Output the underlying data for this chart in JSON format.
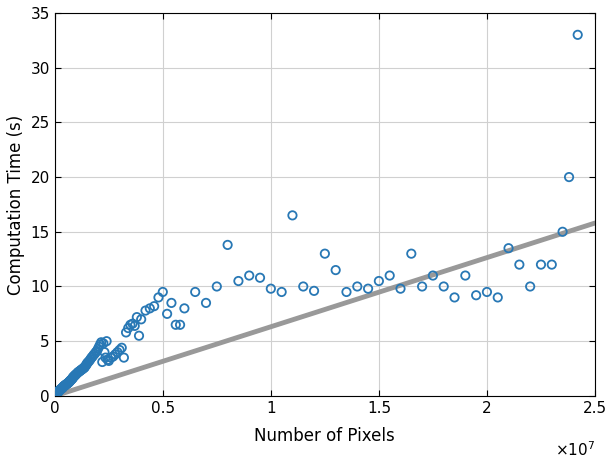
{
  "scatter_x": [
    0.001,
    0.002,
    0.003,
    0.004,
    0.005,
    0.006,
    0.007,
    0.008,
    0.009,
    0.01,
    0.012,
    0.013,
    0.015,
    0.016,
    0.018,
    0.019,
    0.02,
    0.022,
    0.023,
    0.025,
    0.027,
    0.028,
    0.03,
    0.032,
    0.033,
    0.035,
    0.037,
    0.038,
    0.04,
    0.042,
    0.043,
    0.045,
    0.047,
    0.048,
    0.05,
    0.052,
    0.055,
    0.057,
    0.058,
    0.06,
    0.062,
    0.063,
    0.065,
    0.067,
    0.068,
    0.07,
    0.072,
    0.075,
    0.077,
    0.08,
    0.082,
    0.083,
    0.085,
    0.087,
    0.09,
    0.092,
    0.095,
    0.097,
    0.1,
    0.105,
    0.108,
    0.11,
    0.115,
    0.118,
    0.12,
    0.125,
    0.128,
    0.13,
    0.135,
    0.138,
    0.14,
    0.145,
    0.148,
    0.15,
    0.155,
    0.16,
    0.165,
    0.17,
    0.175,
    0.18,
    0.185,
    0.19,
    0.195,
    0.2,
    0.205,
    0.21,
    0.215,
    0.22,
    0.225,
    0.23,
    0.235,
    0.24,
    0.245,
    0.25,
    0.26,
    0.27,
    0.28,
    0.29,
    0.3,
    0.31,
    0.32,
    0.33,
    0.34,
    0.35,
    0.36,
    0.37,
    0.38,
    0.39,
    0.4,
    0.42,
    0.44,
    0.46,
    0.48,
    0.5,
    0.52,
    0.54,
    0.56,
    0.58,
    0.6,
    0.65,
    0.7,
    0.75,
    0.8,
    0.85,
    0.9,
    0.95,
    1.0,
    1.05,
    1.1,
    1.15,
    1.2,
    1.25,
    1.3,
    1.35,
    1.4,
    1.45,
    1.5,
    1.55,
    1.6,
    1.65,
    1.7,
    1.75,
    1.8,
    1.85,
    1.9,
    1.95,
    2.0,
    2.05,
    2.1,
    2.15,
    2.2,
    2.25,
    2.3,
    2.35,
    2.38,
    2.42
  ],
  "scatter_y": [
    0.05,
    0.08,
    0.1,
    0.12,
    0.15,
    0.18,
    0.2,
    0.22,
    0.25,
    0.28,
    0.3,
    0.35,
    0.38,
    0.4,
    0.42,
    0.45,
    0.48,
    0.5,
    0.52,
    0.55,
    0.6,
    0.62,
    0.65,
    0.68,
    0.7,
    0.72,
    0.75,
    0.8,
    0.85,
    0.88,
    0.9,
    0.92,
    0.95,
    0.98,
    1.0,
    1.05,
    1.08,
    1.1,
    1.12,
    1.15,
    1.18,
    1.2,
    1.25,
    1.28,
    1.3,
    1.35,
    1.4,
    1.45,
    1.5,
    1.55,
    1.6,
    1.65,
    1.7,
    1.75,
    1.8,
    1.85,
    1.9,
    1.95,
    2.0,
    2.1,
    2.15,
    2.2,
    2.25,
    2.3,
    2.35,
    2.4,
    2.45,
    2.5,
    2.55,
    2.6,
    2.7,
    2.8,
    2.9,
    3.0,
    3.1,
    3.2,
    3.35,
    3.5,
    3.6,
    3.75,
    3.85,
    4.0,
    4.1,
    4.3,
    4.5,
    4.7,
    4.9,
    3.1,
    4.8,
    4.0,
    3.5,
    5.0,
    3.3,
    3.2,
    3.5,
    3.6,
    3.8,
    4.0,
    4.2,
    4.4,
    3.5,
    5.8,
    6.2,
    6.5,
    6.6,
    6.4,
    7.2,
    5.5,
    7.0,
    7.8,
    8.0,
    8.2,
    9.0,
    9.5,
    7.5,
    8.5,
    6.5,
    6.5,
    8.0,
    9.5,
    8.5,
    10.0,
    13.8,
    10.5,
    11.0,
    10.8,
    9.8,
    9.5,
    16.5,
    10.0,
    9.6,
    13.0,
    11.5,
    9.5,
    10.0,
    9.8,
    10.5,
    11.0,
    9.8,
    13.0,
    10.0,
    11.0,
    10.0,
    9.0,
    11.0,
    9.2,
    9.5,
    9.0,
    13.5,
    12.0,
    10.0,
    12.0,
    12.0,
    15.0,
    20.0,
    33.0
  ],
  "fit_x": [
    0.0,
    2.5
  ],
  "fit_y": [
    0.0,
    15.8
  ],
  "scatter_color": "#2878b5",
  "fit_color": "#999999",
  "xlabel": "Number of Pixels",
  "ylabel": "Computation Time (s)",
  "xlim": [
    0,
    2.5
  ],
  "ylim": [
    0,
    35
  ],
  "xticks": [
    0,
    0.5,
    1.0,
    1.5,
    2.0,
    2.5
  ],
  "xtick_labels": [
    "0",
    "0.5",
    "1",
    "1.5",
    "2",
    "2.5"
  ],
  "yticks": [
    0,
    5,
    10,
    15,
    20,
    25,
    30,
    35
  ],
  "xscale_exp": 7,
  "marker_size": 6,
  "fit_linewidth": 3.5,
  "grid": true,
  "fig_width": 6.14,
  "fig_height": 4.66,
  "dpi": 100
}
